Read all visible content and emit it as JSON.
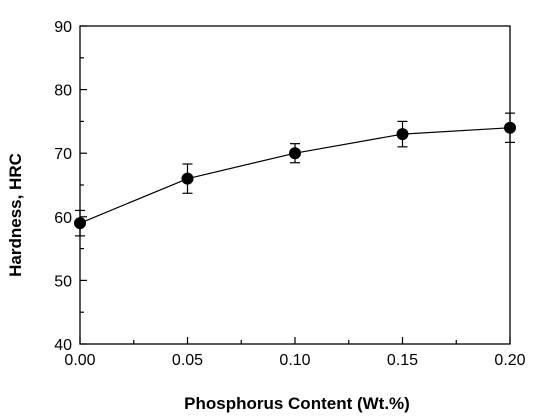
{
  "chart_data": {
    "type": "line",
    "title": "",
    "xlabel": "Phosphorus Content (Wt.%)",
    "ylabel": "Hardness, HRC",
    "xlim": [
      0.0,
      0.2
    ],
    "ylim": [
      40,
      90
    ],
    "x_ticks": [
      "0.00",
      "0.05",
      "0.10",
      "0.15",
      "0.20"
    ],
    "y_ticks": [
      "40",
      "50",
      "60",
      "70",
      "80",
      "90"
    ],
    "grid": false,
    "legend": "none",
    "marker": "filled-circle",
    "line_color": "#000000",
    "series": [
      {
        "x": [
          0.0,
          0.05,
          0.1,
          0.15,
          0.2
        ],
        "y": [
          59,
          66,
          70,
          73,
          74
        ],
        "error": [
          2,
          2.3,
          1.5,
          2,
          2.3
        ]
      }
    ]
  }
}
